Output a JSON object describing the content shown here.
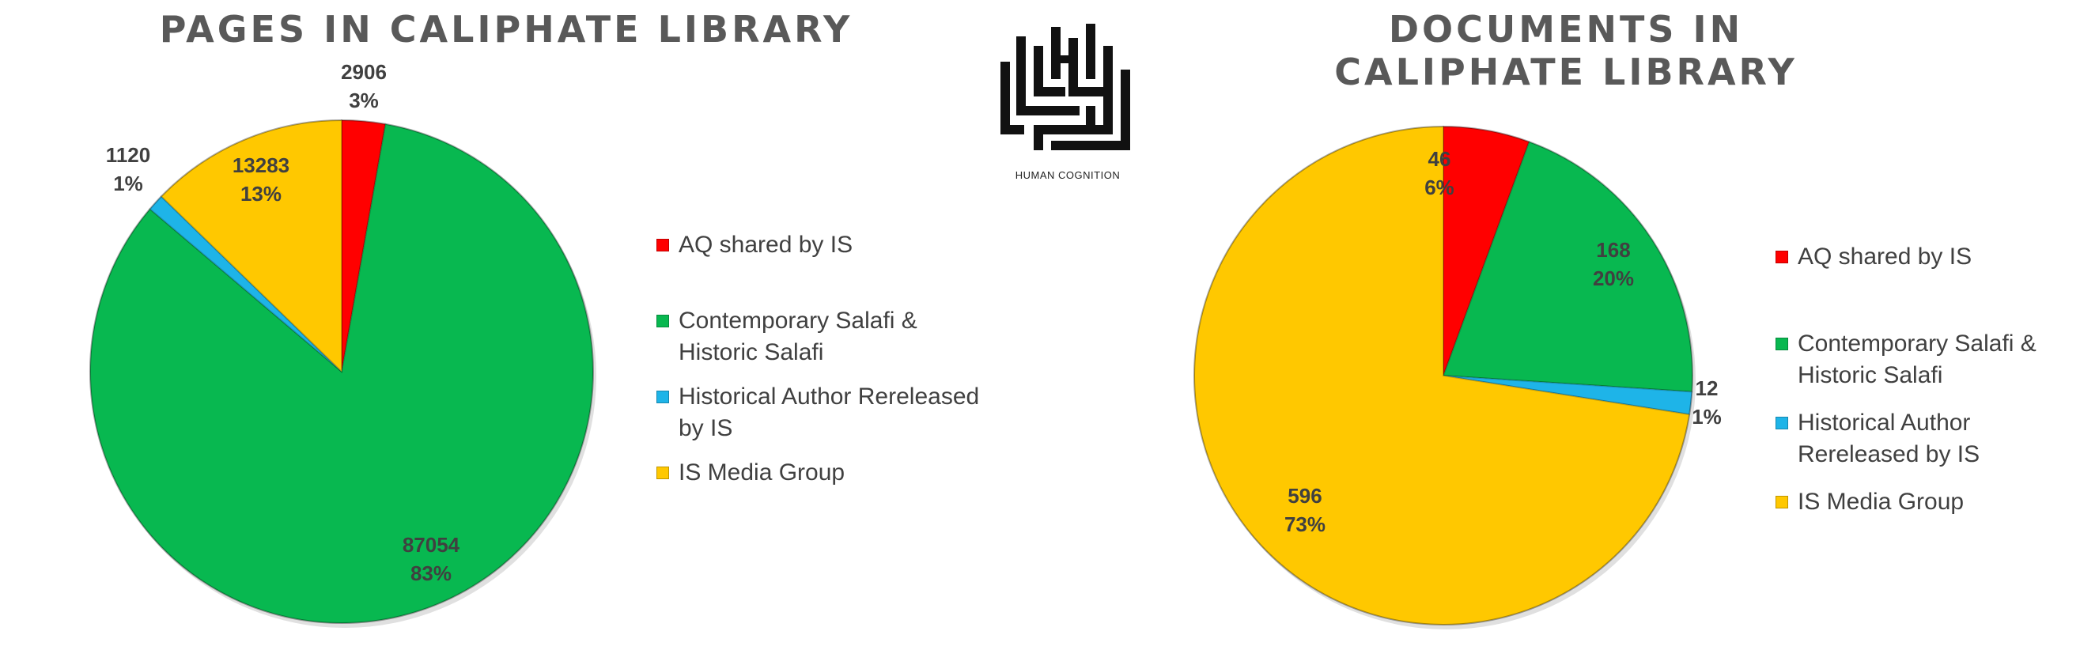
{
  "logo": {
    "caption": "HUMAN COGNITION"
  },
  "chart_data": [
    {
      "type": "pie",
      "title": "PAGES IN CALIPHATE LIBRARY",
      "legend_position": "right",
      "slices": [
        {
          "label": "AQ shared by IS",
          "value": 2906,
          "percent": "3%",
          "color": "#ff0000"
        },
        {
          "label": "Contemporary Salafi & Historic Salafi",
          "value": 87054,
          "percent": "83%",
          "color": "#08b850"
        },
        {
          "label": "Historical Author Rereleased by IS",
          "value": 1120,
          "percent": "1%",
          "color": "#1eb4e8"
        },
        {
          "label": "IS Media Group",
          "value": 13283,
          "percent": "13%",
          "color": "#ffc800"
        }
      ],
      "legend": [
        "AQ shared by IS",
        "Contemporary Salafi &",
        "Historic Salafi",
        "Historical Author Rereleased",
        "by IS",
        "IS Media Group"
      ]
    },
    {
      "type": "pie",
      "title": "DOCUMENTS IN CALIPHATE LIBRARY",
      "legend_position": "right",
      "slices": [
        {
          "label": "AQ shared by IS",
          "value": 46,
          "percent": "6%",
          "color": "#ff0000"
        },
        {
          "label": "Contemporary Salafi & Historic Salafi",
          "value": 168,
          "percent": "20%",
          "color": "#08b850"
        },
        {
          "label": "Historical Author Rereleased by IS",
          "value": 12,
          "percent": "1%",
          "color": "#1eb4e8"
        },
        {
          "label": "IS Media Group",
          "value": 596,
          "percent": "73%",
          "color": "#ffc800"
        }
      ],
      "legend": [
        "AQ shared by IS",
        "Contemporary Salafi &",
        "Historic Salafi",
        "Historical Author",
        "Rereleased by IS",
        "IS Media Group"
      ]
    }
  ]
}
